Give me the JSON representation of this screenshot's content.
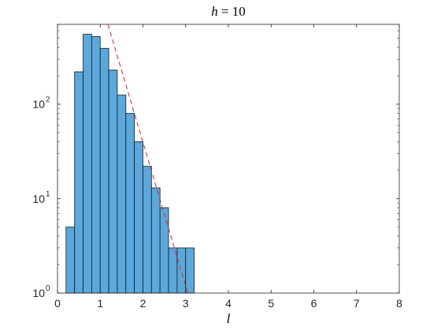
{
  "chart_data": {
    "type": "bar",
    "title": {
      "var": "h",
      "eq": " = ",
      "value": "10"
    },
    "xlabel": "l",
    "ylabel": "",
    "y_scale": "log",
    "xlim": [
      0,
      8
    ],
    "ylim": [
      1,
      700
    ],
    "x_ticks": [
      "0",
      "1",
      "2",
      "3",
      "4",
      "5",
      "6",
      "7",
      "8"
    ],
    "y_ticks": [
      {
        "base": "10",
        "exp": "0",
        "value": 1
      },
      {
        "base": "10",
        "exp": "1",
        "value": 10
      },
      {
        "base": "10",
        "exp": "2",
        "value": 100
      }
    ],
    "bin_width": 0.2,
    "bins": [
      {
        "x0": 0.2,
        "count": 5
      },
      {
        "x0": 0.4,
        "count": 220
      },
      {
        "x0": 0.6,
        "count": 550
      },
      {
        "x0": 0.8,
        "count": 520
      },
      {
        "x0": 1.0,
        "count": 390
      },
      {
        "x0": 1.2,
        "count": 230
      },
      {
        "x0": 1.4,
        "count": 125
      },
      {
        "x0": 1.6,
        "count": 80
      },
      {
        "x0": 1.8,
        "count": 40
      },
      {
        "x0": 2.0,
        "count": 22
      },
      {
        "x0": 2.2,
        "count": 13
      },
      {
        "x0": 2.4,
        "count": 8
      },
      {
        "x0": 2.6,
        "count": 3
      },
      {
        "x0": 2.8,
        "count": 3
      },
      {
        "x0": 3.0,
        "count": 3
      }
    ],
    "fit_line": {
      "points": [
        [
          1.18,
          700
        ],
        [
          3.05,
          1
        ]
      ],
      "style": "dashed"
    },
    "grid": false,
    "legend": "none",
    "colors": {
      "bar_fill": "#5aa8dc",
      "bar_edge": "#1a1a1a",
      "fit_line": "#e02020",
      "axes": "#262626"
    }
  }
}
